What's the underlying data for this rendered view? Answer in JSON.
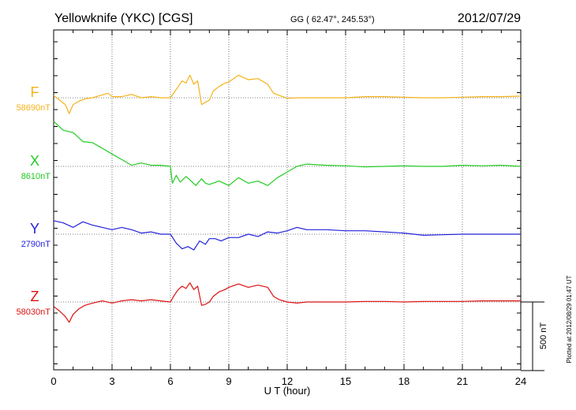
{
  "chart_data": {
    "type": "line",
    "title": "Yellowknife (YKC)  [CGS]",
    "coords": "GG ( 62.47°, 245.53°)",
    "date": "2012/07/29",
    "xlabel": "U T (hour)",
    "xlim": [
      0,
      24
    ],
    "xticks": [
      0,
      3,
      6,
      9,
      12,
      15,
      18,
      21,
      24
    ],
    "x_tick_labels": [
      "0",
      "3",
      "6",
      "9",
      "12",
      "15",
      "18",
      "21",
      "24"
    ],
    "scale_bar": {
      "label": "500 nT",
      "value_nT": 500
    },
    "nT_per_panel_division": 350,
    "plotted_note": "Plotted at 2012/08/29 01:47 UT",
    "series": [
      {
        "name": "F",
        "baseline_label": "58690nT",
        "color": "#f5b21b",
        "x": [
          0,
          0.3,
          0.6,
          0.8,
          1.0,
          1.3,
          1.6,
          2.0,
          2.4,
          2.8,
          3.0,
          3.5,
          4.0,
          4.5,
          5.0,
          5.5,
          6.0,
          6.2,
          6.4,
          6.6,
          6.8,
          7.0,
          7.2,
          7.4,
          7.6,
          7.8,
          8.0,
          8.2,
          8.5,
          8.8,
          9.0,
          9.5,
          10.0,
          10.5,
          11.0,
          11.3,
          11.6,
          12.0,
          12.5,
          13.0,
          14.0,
          15.0,
          16.0,
          17.0,
          18.0,
          19.0,
          20.0,
          21.0,
          22.0,
          23.0,
          24.0
        ],
        "y": [
          20,
          -20,
          -60,
          -140,
          -60,
          -30,
          -10,
          0,
          20,
          40,
          10,
          10,
          30,
          0,
          10,
          0,
          0,
          50,
          100,
          150,
          130,
          200,
          120,
          150,
          -60,
          -40,
          -20,
          60,
          100,
          130,
          140,
          200,
          160,
          170,
          120,
          40,
          20,
          -5,
          0,
          0,
          0,
          0,
          10,
          10,
          5,
          0,
          0,
          5,
          10,
          10,
          15
        ]
      },
      {
        "name": "X",
        "baseline_label": "8610nT",
        "color": "#22cc22",
        "x": [
          0,
          0.5,
          1.0,
          1.5,
          2.0,
          2.5,
          3.0,
          3.5,
          4.0,
          4.5,
          5.0,
          5.5,
          6.0,
          6.1,
          6.3,
          6.5,
          6.8,
          7.0,
          7.3,
          7.6,
          7.8,
          8.0,
          8.5,
          9.0,
          9.5,
          10.0,
          10.5,
          11.0,
          11.5,
          12.0,
          12.5,
          13.0,
          14.0,
          15.0,
          16.0,
          17.0,
          18.0,
          19.0,
          20.0,
          21.0,
          22.0,
          23.0,
          24.0
        ],
        "y": [
          400,
          320,
          300,
          220,
          210,
          160,
          110,
          60,
          10,
          30,
          10,
          10,
          0,
          -150,
          -80,
          -140,
          -90,
          -120,
          -170,
          -110,
          -150,
          -160,
          -130,
          -170,
          -100,
          -150,
          -130,
          -170,
          -100,
          -50,
          0,
          20,
          10,
          5,
          -5,
          0,
          5,
          0,
          0,
          10,
          5,
          10,
          0
        ]
      },
      {
        "name": "Y",
        "baseline_label": "2790nT",
        "color": "#2222dd",
        "x": [
          0,
          0.5,
          1.0,
          1.5,
          2.0,
          2.5,
          3.0,
          3.5,
          4.0,
          4.5,
          5.0,
          5.5,
          6.0,
          6.3,
          6.6,
          6.9,
          7.2,
          7.5,
          7.8,
          8.0,
          8.3,
          8.6,
          9.0,
          9.5,
          10.0,
          10.5,
          11.0,
          11.5,
          12.0,
          12.5,
          13.0,
          14.0,
          15.0,
          16.0,
          17.0,
          18.0,
          19.0,
          20.0,
          21.0,
          22.0,
          23.0,
          24.0
        ],
        "y": [
          120,
          100,
          60,
          110,
          80,
          60,
          40,
          60,
          40,
          10,
          20,
          0,
          0,
          -80,
          -130,
          -110,
          -140,
          -60,
          -90,
          -40,
          -40,
          -60,
          -30,
          -30,
          0,
          -20,
          20,
          10,
          30,
          60,
          40,
          40,
          30,
          30,
          20,
          10,
          -10,
          -5,
          0,
          0,
          0,
          0
        ]
      },
      {
        "name": "Z",
        "baseline_label": "58030nT",
        "color": "#dd1111",
        "x": [
          0,
          0.3,
          0.6,
          0.8,
          1.0,
          1.3,
          1.6,
          2.0,
          2.5,
          3.0,
          3.5,
          4.0,
          4.5,
          5.0,
          5.5,
          6.0,
          6.2,
          6.4,
          6.6,
          6.8,
          7.0,
          7.2,
          7.4,
          7.6,
          7.8,
          8.0,
          8.2,
          8.5,
          8.8,
          9.0,
          9.5,
          10.0,
          10.5,
          11.0,
          11.3,
          11.6,
          12.0,
          12.5,
          13.0,
          14.0,
          15.0,
          16.0,
          17.0,
          18.0,
          19.0,
          20.0,
          21.0,
          22.0,
          23.0,
          24.0
        ],
        "y": [
          -40,
          -80,
          -130,
          -180,
          -110,
          -60,
          -30,
          -10,
          10,
          -10,
          10,
          20,
          10,
          20,
          10,
          0,
          60,
          110,
          140,
          120,
          170,
          110,
          140,
          -30,
          -20,
          0,
          50,
          90,
          110,
          130,
          160,
          130,
          150,
          130,
          50,
          20,
          0,
          -10,
          0,
          0,
          0,
          5,
          5,
          0,
          5,
          5,
          5,
          10,
          10,
          10
        ]
      }
    ]
  }
}
